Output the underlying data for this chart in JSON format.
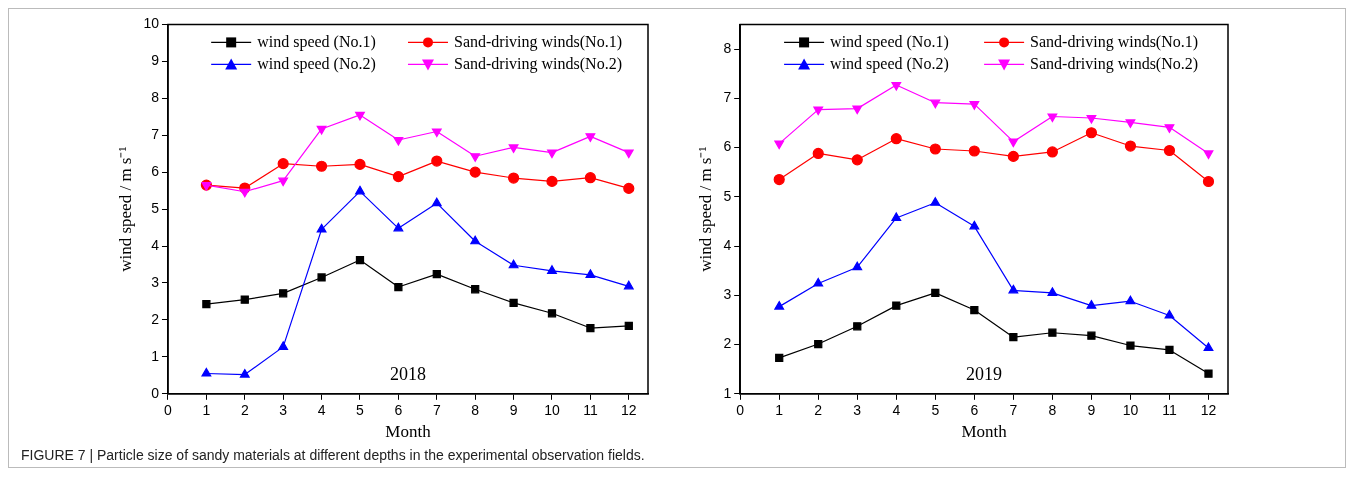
{
  "chart_data": [
    {
      "type": "line",
      "xlabel": "Month",
      "ylabel": "wind speed / m s⁻¹",
      "x": [
        1,
        2,
        3,
        4,
        5,
        6,
        7,
        8,
        9,
        10,
        11,
        12
      ],
      "xlim": [
        0,
        12.5
      ],
      "xticks": [
        0,
        1,
        2,
        3,
        4,
        5,
        6,
        7,
        8,
        9,
        10,
        11,
        12
      ],
      "ylim": [
        0,
        10
      ],
      "yticks": [
        0,
        1,
        2,
        3,
        4,
        5,
        6,
        7,
        8,
        9,
        10
      ],
      "grid": false,
      "legend": "top",
      "line_style": "solid",
      "annotations": [
        "2018"
      ],
      "series": [
        {
          "name": "wind speed (No.1)",
          "color": "#000000",
          "marker": "square",
          "values": [
            2.43,
            2.55,
            2.72,
            3.15,
            3.62,
            2.89,
            3.24,
            2.83,
            2.46,
            2.18,
            1.78,
            1.84
          ]
        },
        {
          "name": "Sand-driving winds(No.1)",
          "color": "#ff0000",
          "marker": "circle",
          "values": [
            5.65,
            5.57,
            6.23,
            6.16,
            6.21,
            5.88,
            6.3,
            6.0,
            5.84,
            5.75,
            5.85,
            5.56
          ]
        },
        {
          "name": "wind speed (No.2)",
          "color": "#0000ff",
          "marker": "triangle",
          "values": [
            0.55,
            0.52,
            1.27,
            4.45,
            5.48,
            4.48,
            5.16,
            4.13,
            3.48,
            3.33,
            3.22,
            2.91
          ]
        },
        {
          "name": "Sand-driving winds(No.2)",
          "color": "#ff00ff",
          "marker": "triangle_down",
          "values": [
            5.65,
            5.47,
            5.77,
            7.17,
            7.55,
            6.87,
            7.1,
            6.43,
            6.67,
            6.53,
            6.97,
            6.53
          ]
        }
      ]
    },
    {
      "type": "line",
      "xlabel": "Month",
      "ylabel": "wind speed / m s⁻¹",
      "x": [
        1,
        2,
        3,
        4,
        5,
        6,
        7,
        8,
        9,
        10,
        11,
        12
      ],
      "xlim": [
        0,
        12.5
      ],
      "xticks": [
        0,
        1,
        2,
        3,
        4,
        5,
        6,
        7,
        8,
        9,
        10,
        11,
        12
      ],
      "ylim": [
        1,
        8.5
      ],
      "yticks": [
        1,
        2,
        3,
        4,
        5,
        6,
        7,
        8
      ],
      "grid": false,
      "legend": "top",
      "line_style": "solid",
      "annotations": [
        "2019"
      ],
      "series": [
        {
          "name": "wind speed (No.1)",
          "color": "#000000",
          "marker": "square",
          "values": [
            1.73,
            2.01,
            2.37,
            2.79,
            3.05,
            2.7,
            2.15,
            2.24,
            2.18,
            1.98,
            1.89,
            1.41
          ]
        },
        {
          "name": "Sand-driving winds(No.1)",
          "color": "#ff0000",
          "marker": "circle",
          "values": [
            5.35,
            5.88,
            5.75,
            6.18,
            5.97,
            5.93,
            5.82,
            5.91,
            6.3,
            6.03,
            5.94,
            5.31
          ]
        },
        {
          "name": "wind speed (No.2)",
          "color": "#0000ff",
          "marker": "triangle",
          "values": [
            2.77,
            3.24,
            3.57,
            4.57,
            4.88,
            4.4,
            3.1,
            3.05,
            2.79,
            2.88,
            2.59,
            1.93
          ]
        },
        {
          "name": "Sand-driving winds(No.2)",
          "color": "#ff00ff",
          "marker": "triangle_down",
          "values": [
            6.08,
            6.77,
            6.79,
            7.27,
            6.91,
            6.88,
            6.12,
            6.63,
            6.6,
            6.51,
            6.41,
            5.88
          ]
        }
      ]
    },
    {
      "type": "other",
      "annotations": [
        "FIGURE 7 | Particle size of sandy materials at different depths in the experimental observation fields."
      ]
    }
  ]
}
